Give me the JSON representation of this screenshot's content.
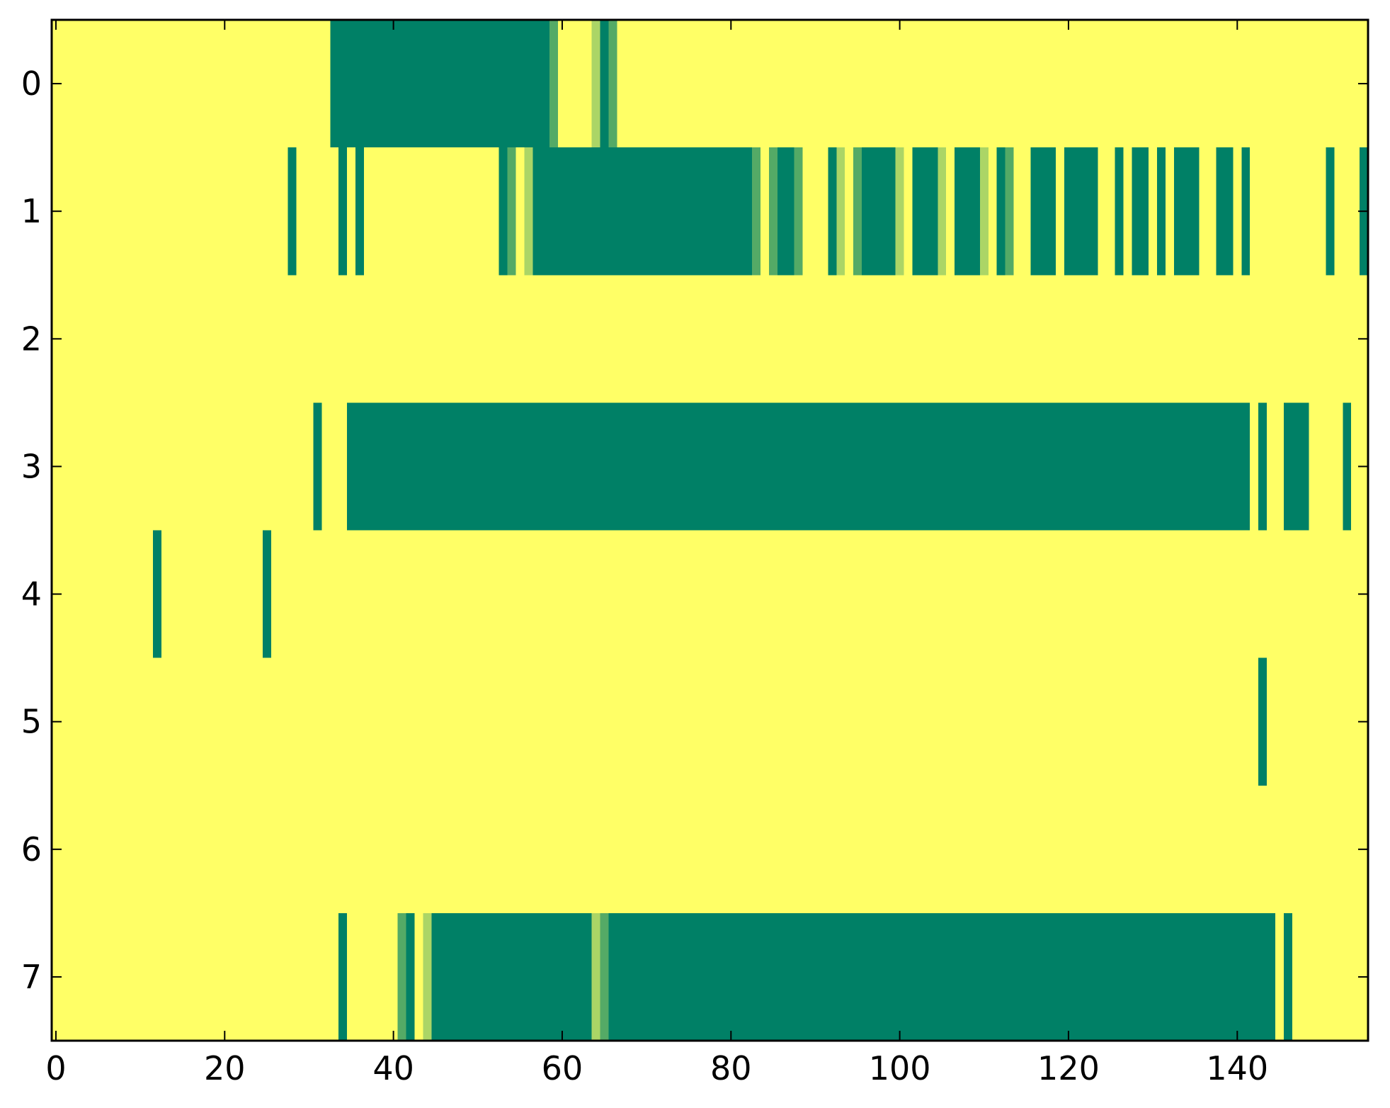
{
  "chart_data": {
    "type": "heatmap",
    "colormap": "summer",
    "zlim": [
      0,
      1
    ],
    "xlim": [
      -0.5,
      155.5
    ],
    "ylim": [
      7.5,
      -0.5
    ],
    "xticks": [
      0,
      20,
      40,
      60,
      80,
      100,
      120,
      140
    ],
    "yticks": [
      0,
      1,
      2,
      3,
      4,
      5,
      6,
      7
    ],
    "z": [
      [
        1,
        1,
        1,
        1,
        1,
        1,
        1,
        1,
        1,
        1,
        1,
        1,
        1,
        1,
        1,
        1,
        1,
        1,
        1,
        1,
        1,
        1,
        1,
        1,
        1,
        1,
        1,
        1,
        1,
        1,
        1,
        1,
        1,
        0,
        0,
        0,
        0,
        0,
        0,
        0,
        0,
        0,
        0,
        0,
        0,
        0,
        0,
        0,
        0,
        0,
        0,
        0,
        0,
        0,
        0,
        0,
        0,
        0,
        0,
        0.33,
        1,
        1,
        1,
        1,
        0.67,
        0,
        0.33,
        1,
        1,
        1,
        1,
        1,
        1,
        1,
        1,
        1,
        1,
        1,
        1,
        1,
        1,
        1,
        1,
        1,
        1,
        1,
        1,
        1,
        1,
        1,
        1,
        1,
        1,
        1,
        1,
        1,
        1,
        1,
        1,
        1,
        1,
        1,
        1,
        1,
        1,
        1,
        1,
        1,
        1,
        1,
        1,
        1,
        1,
        1,
        1,
        1,
        1,
        1,
        1,
        1,
        1,
        1,
        1,
        1,
        1,
        1,
        1,
        1,
        1,
        1,
        1,
        1,
        1,
        1,
        1,
        1,
        1,
        1,
        1,
        1,
        1,
        1,
        1,
        1,
        1,
        1,
        1,
        1,
        1,
        1,
        1,
        1,
        1,
        1,
        1,
        1
      ],
      [
        1,
        1,
        1,
        1,
        1,
        1,
        1,
        1,
        1,
        1,
        1,
        1,
        1,
        1,
        1,
        1,
        1,
        1,
        1,
        1,
        1,
        1,
        1,
        1,
        1,
        1,
        1,
        1,
        0,
        1,
        1,
        1,
        1,
        1,
        0,
        1,
        0,
        1,
        1,
        1,
        1,
        1,
        1,
        1,
        1,
        1,
        1,
        1,
        1,
        1,
        1,
        1,
        1,
        0,
        0.33,
        1,
        0.67,
        0,
        0,
        0,
        0,
        0,
        0,
        0,
        0,
        0,
        0,
        0,
        0,
        0,
        0,
        0,
        0,
        0,
        0,
        0,
        0,
        0,
        0,
        0,
        0,
        0,
        0,
        0.33,
        1,
        0.33,
        0,
        0,
        0.33,
        1,
        1,
        1,
        0,
        0.67,
        1,
        0.33,
        0,
        0,
        0,
        0,
        0.67,
        1,
        0,
        0,
        0,
        0.67,
        1,
        0,
        0,
        0,
        0.67,
        1,
        0,
        0.33,
        1,
        1,
        0,
        0,
        0,
        1,
        0,
        0,
        0,
        0,
        1,
        1,
        0,
        1,
        0,
        0,
        1,
        0,
        1,
        0,
        0,
        0,
        1,
        1,
        0,
        0,
        1,
        0,
        1,
        1,
        1,
        1,
        1,
        1,
        1,
        1,
        1,
        0,
        1,
        1,
        1,
        0
      ],
      [
        1,
        1,
        1,
        1,
        1,
        1,
        1,
        1,
        1,
        1,
        1,
        1,
        1,
        1,
        1,
        1,
        1,
        1,
        1,
        1,
        1,
        1,
        1,
        1,
        1,
        1,
        1,
        1,
        1,
        1,
        1,
        1,
        1,
        1,
        1,
        1,
        1,
        1,
        1,
        1,
        1,
        1,
        1,
        1,
        1,
        1,
        1,
        1,
        1,
        1,
        1,
        1,
        1,
        1,
        1,
        1,
        1,
        1,
        1,
        1,
        1,
        1,
        1,
        1,
        1,
        1,
        1,
        1,
        1,
        1,
        1,
        1,
        1,
        1,
        1,
        1,
        1,
        1,
        1,
        1,
        1,
        1,
        1,
        1,
        1,
        1,
        1,
        1,
        1,
        1,
        1,
        1,
        1,
        1,
        1,
        1,
        1,
        1,
        1,
        1,
        1,
        1,
        1,
        1,
        1,
        1,
        1,
        1,
        1,
        1,
        1,
        1,
        1,
        1,
        1,
        1,
        1,
        1,
        1,
        1,
        1,
        1,
        1,
        1,
        1,
        1,
        1,
        1,
        1,
        1,
        1,
        1,
        1,
        1,
        1,
        1,
        1,
        1,
        1,
        1,
        1,
        1,
        1,
        1,
        1,
        1,
        1,
        1,
        1,
        1,
        1,
        1,
        1,
        1,
        1,
        1
      ],
      [
        1,
        1,
        1,
        1,
        1,
        1,
        1,
        1,
        1,
        1,
        1,
        1,
        1,
        1,
        1,
        1,
        1,
        1,
        1,
        1,
        1,
        1,
        1,
        1,
        1,
        1,
        1,
        1,
        1,
        1,
        1,
        0,
        1,
        1,
        1,
        0,
        0,
        0,
        0,
        0,
        0,
        0,
        0,
        0,
        0,
        0,
        0,
        0,
        0,
        0,
        0,
        0,
        0,
        0,
        0,
        0,
        0,
        0,
        0,
        0,
        0,
        0,
        0,
        0,
        0,
        0,
        0,
        0,
        0,
        0,
        0,
        0,
        0,
        0,
        0,
        0,
        0,
        0,
        0,
        0,
        0,
        0,
        0,
        0,
        0,
        0,
        0,
        0,
        0,
        0,
        0,
        0,
        0,
        0,
        0,
        0,
        0,
        0,
        0,
        0,
        0,
        0,
        0,
        0,
        0,
        0,
        0,
        0,
        0,
        0,
        0,
        0,
        0,
        0,
        0,
        0,
        0,
        0,
        0,
        0,
        0,
        0,
        0,
        0,
        0,
        0,
        0,
        0,
        0,
        0,
        0,
        0,
        0,
        0,
        0,
        0,
        0,
        0,
        0,
        0,
        0,
        0,
        1,
        0,
        1,
        1,
        0,
        0,
        0,
        1,
        1,
        1,
        1,
        0,
        1,
        1
      ],
      [
        1,
        1,
        1,
        1,
        1,
        1,
        1,
        1,
        1,
        1,
        1,
        1,
        0,
        1,
        1,
        1,
        1,
        1,
        1,
        1,
        1,
        1,
        1,
        1,
        1,
        0,
        1,
        1,
        1,
        1,
        1,
        1,
        1,
        1,
        1,
        1,
        1,
        1,
        1,
        1,
        1,
        1,
        1,
        1,
        1,
        1,
        1,
        1,
        1,
        1,
        1,
        1,
        1,
        1,
        1,
        1,
        1,
        1,
        1,
        1,
        1,
        1,
        1,
        1,
        1,
        1,
        1,
        1,
        1,
        1,
        1,
        1,
        1,
        1,
        1,
        1,
        1,
        1,
        1,
        1,
        1,
        1,
        1,
        1,
        1,
        1,
        1,
        1,
        1,
        1,
        1,
        1,
        1,
        1,
        1,
        1,
        1,
        1,
        1,
        1,
        1,
        1,
        1,
        1,
        1,
        1,
        1,
        1,
        1,
        1,
        1,
        1,
        1,
        1,
        1,
        1,
        1,
        1,
        1,
        1,
        1,
        1,
        1,
        1,
        1,
        1,
        1,
        1,
        1,
        1,
        1,
        1,
        1,
        1,
        1,
        1,
        1,
        1,
        1,
        1,
        1,
        1,
        1,
        1,
        1,
        1,
        1,
        1,
        1,
        1,
        1,
        1,
        1,
        1,
        1,
        1
      ],
      [
        1,
        1,
        1,
        1,
        1,
        1,
        1,
        1,
        1,
        1,
        1,
        1,
        1,
        1,
        1,
        1,
        1,
        1,
        1,
        1,
        1,
        1,
        1,
        1,
        1,
        1,
        1,
        1,
        1,
        1,
        1,
        1,
        1,
        1,
        1,
        1,
        1,
        1,
        1,
        1,
        1,
        1,
        1,
        1,
        1,
        1,
        1,
        1,
        1,
        1,
        1,
        1,
        1,
        1,
        1,
        1,
        1,
        1,
        1,
        1,
        1,
        1,
        1,
        1,
        1,
        1,
        1,
        1,
        1,
        1,
        1,
        1,
        1,
        1,
        1,
        1,
        1,
        1,
        1,
        1,
        1,
        1,
        1,
        1,
        1,
        1,
        1,
        1,
        1,
        1,
        1,
        1,
        1,
        1,
        1,
        1,
        1,
        1,
        1,
        1,
        1,
        1,
        1,
        1,
        1,
        1,
        1,
        1,
        1,
        1,
        1,
        1,
        1,
        1,
        1,
        1,
        1,
        1,
        1,
        1,
        1,
        1,
        1,
        1,
        1,
        1,
        1,
        1,
        1,
        1,
        1,
        1,
        1,
        1,
        1,
        1,
        1,
        1,
        1,
        1,
        1,
        1,
        1,
        0,
        1,
        1,
        1,
        1,
        1,
        1,
        1,
        1,
        1,
        1,
        1,
        1
      ],
      [
        1,
        1,
        1,
        1,
        1,
        1,
        1,
        1,
        1,
        1,
        1,
        1,
        1,
        1,
        1,
        1,
        1,
        1,
        1,
        1,
        1,
        1,
        1,
        1,
        1,
        1,
        1,
        1,
        1,
        1,
        1,
        1,
        1,
        1,
        1,
        1,
        1,
        1,
        1,
        1,
        1,
        1,
        1,
        1,
        1,
        1,
        1,
        1,
        1,
        1,
        1,
        1,
        1,
        1,
        1,
        1,
        1,
        1,
        1,
        1,
        1,
        1,
        1,
        1,
        1,
        1,
        1,
        1,
        1,
        1,
        1,
        1,
        1,
        1,
        1,
        1,
        1,
        1,
        1,
        1,
        1,
        1,
        1,
        1,
        1,
        1,
        1,
        1,
        1,
        1,
        1,
        1,
        1,
        1,
        1,
        1,
        1,
        1,
        1,
        1,
        1,
        1,
        1,
        1,
        1,
        1,
        1,
        1,
        1,
        1,
        1,
        1,
        1,
        1,
        1,
        1,
        1,
        1,
        1,
        1,
        1,
        1,
        1,
        1,
        1,
        1,
        1,
        1,
        1,
        1,
        1,
        1,
        1,
        1,
        1,
        1,
        1,
        1,
        1,
        1,
        1,
        1,
        1,
        1,
        1,
        1,
        1,
        1,
        1,
        1,
        1,
        1,
        1,
        1,
        1,
        1
      ],
      [
        1,
        1,
        1,
        1,
        1,
        1,
        1,
        1,
        1,
        1,
        1,
        1,
        1,
        1,
        1,
        1,
        1,
        1,
        1,
        1,
        1,
        1,
        1,
        1,
        1,
        1,
        1,
        1,
        1,
        1,
        1,
        1,
        1,
        1,
        0,
        1,
        1,
        1,
        1,
        1,
        1,
        0.33,
        0,
        1,
        0.67,
        0,
        0,
        0,
        0,
        0,
        0,
        0,
        0,
        0,
        0,
        0,
        0,
        0,
        0,
        0,
        0,
        0,
        0,
        0,
        0.67,
        0.33,
        0,
        0,
        0,
        0,
        0,
        0,
        0,
        0,
        0,
        0,
        0,
        0,
        0,
        0,
        0,
        0,
        0,
        0,
        0,
        0,
        0,
        0,
        0,
        0,
        0,
        0,
        0,
        0,
        0,
        0,
        0,
        0,
        0,
        0,
        0,
        0,
        0,
        0,
        0,
        0,
        0,
        0,
        0,
        0,
        0,
        0,
        0,
        0,
        0,
        0,
        0,
        0,
        0,
        0,
        0,
        0,
        0,
        0,
        0,
        0,
        0,
        0,
        0,
        0,
        0,
        0,
        0,
        0,
        0,
        0,
        0,
        0,
        0,
        0,
        0,
        0,
        0,
        0,
        0,
        1,
        0,
        1,
        1,
        1,
        1,
        1,
        1,
        1,
        1,
        1
      ]
    ]
  }
}
